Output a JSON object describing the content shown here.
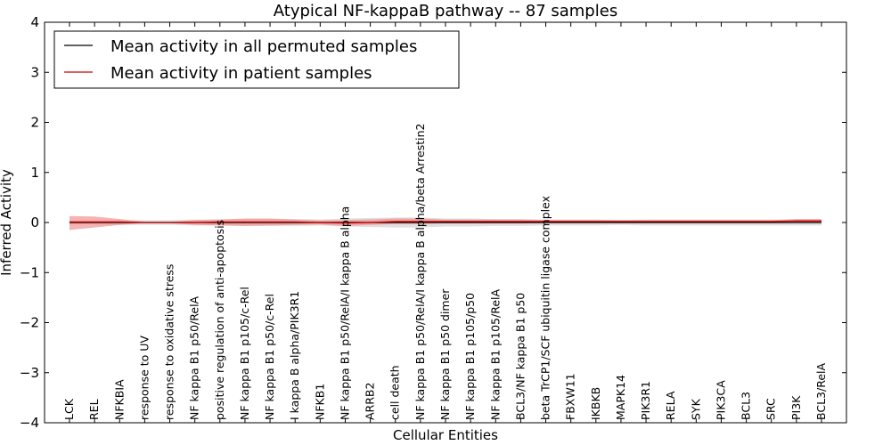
{
  "chart_data": {
    "type": "line",
    "title": "Atypical NF-kappaB pathway -- 87 samples",
    "xlabel": "Cellular Entities",
    "ylabel": "Inferred Activity",
    "ylim": [
      -4,
      4
    ],
    "yticks": [
      -4,
      -3,
      -2,
      -1,
      0,
      1,
      2,
      3,
      4
    ],
    "ytick_labels": [
      "−4",
      "−3",
      "−2",
      "−1",
      "0",
      "1",
      "2",
      "3",
      "4"
    ],
    "grid": false,
    "legend_position": "top-left",
    "categories": [
      "LCK",
      "REL",
      "NFKBIA",
      "response to UV",
      "response to oxidative stress",
      "NF kappa B1 p50/RelA",
      "positive regulation of anti-apoptosis",
      "NF kappa B1 p105/c-Rel",
      "NF kappa B1 p50/c-Rel",
      "I kappa B alpha/PIK3R1",
      "NFKB1",
      "NF kappa B1 p50/RelA/I kappa B alpha",
      "ARRB2",
      "cell death",
      "NF kappa B1 p50/RelA/I kappa B alpha/beta Arrestin2",
      "NF kappa B1 p50 dimer",
      "NF kappa B1 p105/p50",
      "NF kappa B1 p105/RelA",
      "BCL3/NF kappa B1 p50",
      "beta TrCP1/SCF ubiquitin ligase complex",
      "FBXW11",
      "IKBKB",
      "MAPK14",
      "PIK3R1",
      "RELA",
      "SYK",
      "PIK3CA",
      "BCL3",
      "SRC",
      "PI3K",
      "BCL3/RelA"
    ],
    "series": [
      {
        "name": "Mean activity in all permuted samples",
        "color": "#000000",
        "values": [
          0.0,
          0.0,
          0.0,
          0.0,
          0.0,
          0.0,
          0.0,
          0.0,
          0.0,
          0.0,
          0.0,
          0.0,
          0.0,
          0.0,
          0.0,
          0.0,
          0.0,
          0.0,
          0.0,
          0.0,
          0.0,
          0.0,
          0.0,
          0.0,
          0.0,
          0.0,
          0.0,
          0.0,
          0.0,
          0.0,
          0.0
        ],
        "band_lower": [
          -0.04,
          -0.04,
          -0.05,
          -0.05,
          -0.05,
          -0.06,
          -0.06,
          -0.07,
          -0.07,
          -0.07,
          -0.06,
          -0.08,
          -0.09,
          -0.1,
          -0.1,
          -0.08,
          -0.08,
          -0.07,
          -0.07,
          -0.06,
          -0.06,
          -0.06,
          -0.05,
          -0.06,
          -0.06,
          -0.06,
          -0.06,
          -0.06,
          -0.06,
          -0.06,
          -0.06
        ],
        "band_upper": [
          0.04,
          0.04,
          0.05,
          0.05,
          0.05,
          0.06,
          0.06,
          0.07,
          0.07,
          0.07,
          0.06,
          0.08,
          0.09,
          0.1,
          0.1,
          0.08,
          0.08,
          0.07,
          0.07,
          0.06,
          0.06,
          0.06,
          0.05,
          0.06,
          0.06,
          0.06,
          0.06,
          0.06,
          0.06,
          0.06,
          0.06
        ],
        "band_color": "#bbbbbb"
      },
      {
        "name": "Mean activity in patient samples",
        "color": "#cc0000",
        "values": [
          0.01,
          0.01,
          0.01,
          0.0,
          0.0,
          0.0,
          0.01,
          0.01,
          0.01,
          0.01,
          0.0,
          -0.01,
          0.0,
          0.02,
          0.02,
          0.02,
          0.02,
          0.02,
          0.02,
          0.02,
          0.02,
          0.02,
          0.02,
          0.02,
          0.02,
          0.02,
          0.02,
          0.02,
          0.02,
          0.03,
          0.03
        ],
        "band_lower": [
          -0.15,
          -0.1,
          -0.05,
          -0.01,
          -0.01,
          -0.05,
          -0.06,
          -0.07,
          -0.06,
          -0.05,
          -0.04,
          -0.07,
          -0.05,
          -0.03,
          -0.03,
          -0.02,
          -0.02,
          -0.02,
          -0.02,
          -0.01,
          -0.01,
          -0.01,
          -0.01,
          -0.01,
          -0.01,
          -0.01,
          -0.01,
          -0.01,
          -0.01,
          -0.01,
          -0.01
        ],
        "band_upper": [
          0.13,
          0.12,
          0.07,
          0.01,
          0.01,
          0.05,
          0.06,
          0.08,
          0.08,
          0.06,
          0.04,
          0.05,
          0.06,
          0.08,
          0.08,
          0.06,
          0.06,
          0.06,
          0.06,
          0.05,
          0.05,
          0.05,
          0.05,
          0.05,
          0.05,
          0.05,
          0.05,
          0.05,
          0.05,
          0.07,
          0.07
        ],
        "band_color": "#f08080"
      }
    ]
  }
}
